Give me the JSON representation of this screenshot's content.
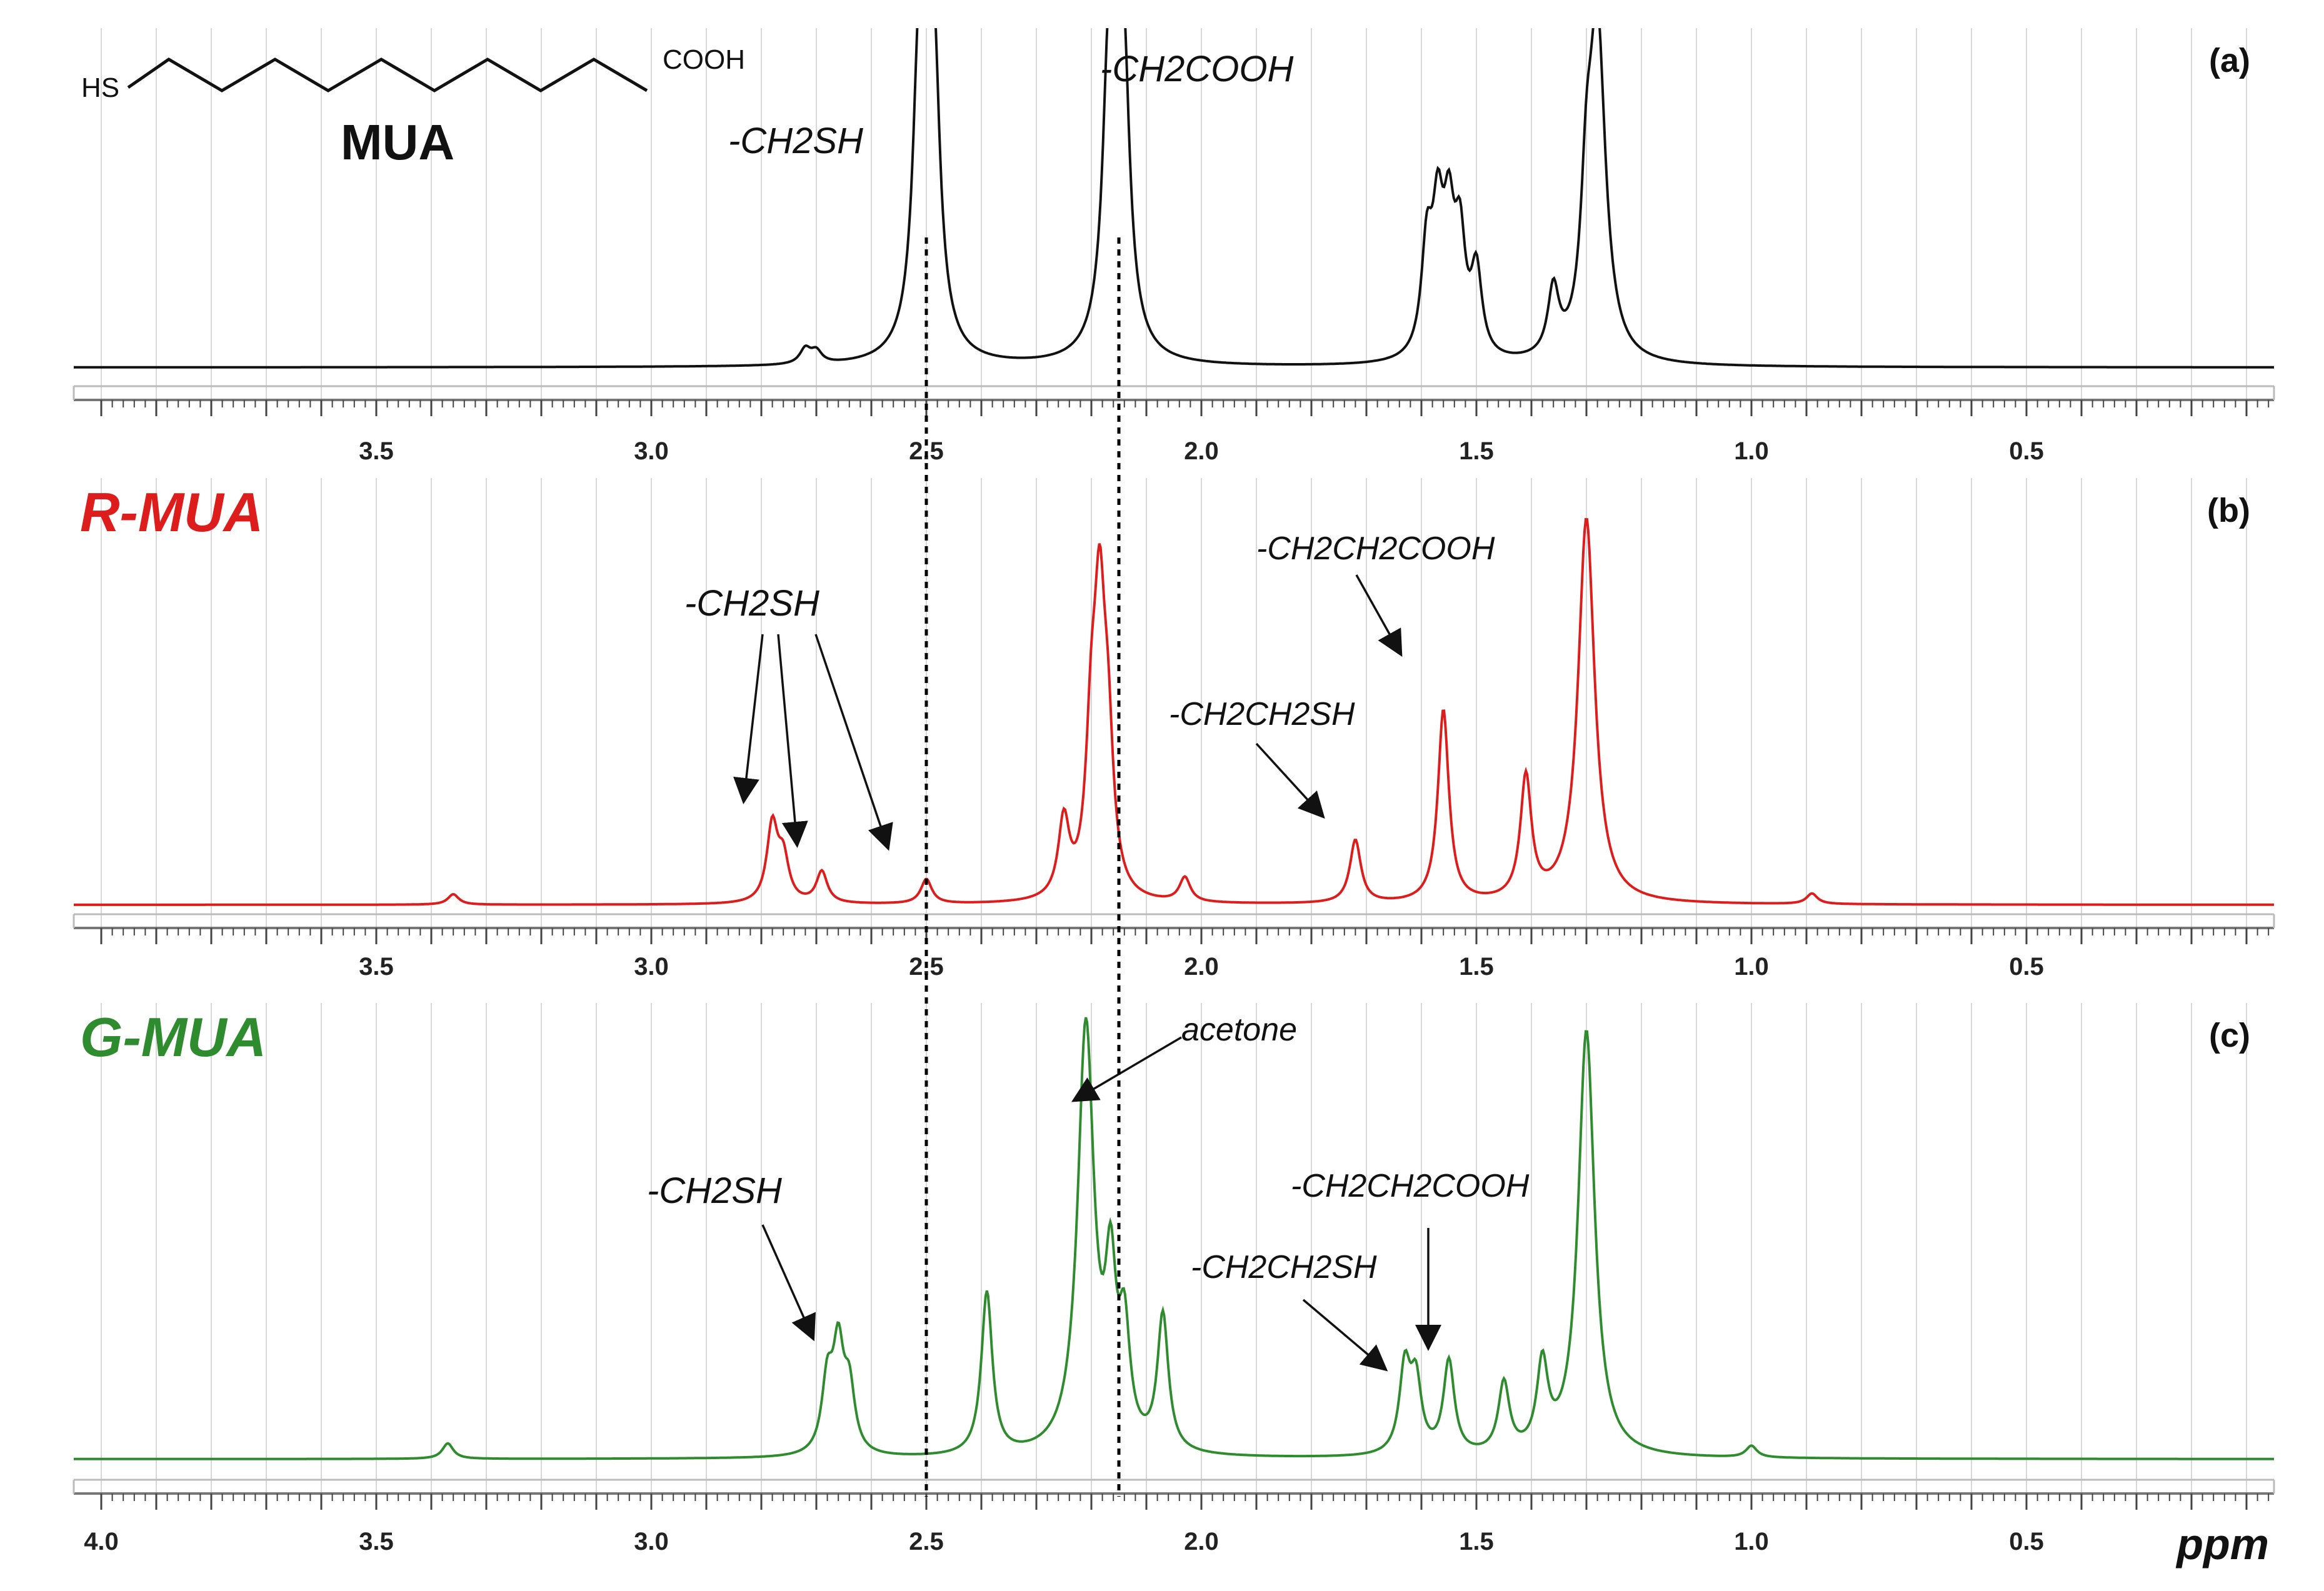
{
  "chart_data": [
    {
      "type": "line",
      "panel_tag": "(a)",
      "sample_name": "",
      "xlabel": "",
      "x_ticks": [
        "3.5",
        "3.0",
        "2.5",
        "2.0",
        "1.5",
        "1.0",
        "0.5"
      ],
      "xlim": [
        4.05,
        0.05
      ],
      "color": "#111111",
      "molecule": {
        "left": "HS",
        "right": "COOH",
        "name": "MUA"
      },
      "peaks": [
        {
          "ppm": 2.72,
          "intensity": 0.05
        },
        {
          "ppm": 2.7,
          "intensity": 0.04
        },
        {
          "ppm": 2.515,
          "intensity": 0.55
        },
        {
          "ppm": 2.5,
          "intensity": 0.95
        },
        {
          "ppm": 2.485,
          "intensity": 0.58
        },
        {
          "ppm": 2.17,
          "intensity": 0.55
        },
        {
          "ppm": 2.155,
          "intensity": 0.92
        },
        {
          "ppm": 2.14,
          "intensity": 0.58
        },
        {
          "ppm": 1.59,
          "intensity": 0.35
        },
        {
          "ppm": 1.57,
          "intensity": 0.42
        },
        {
          "ppm": 1.55,
          "intensity": 0.4
        },
        {
          "ppm": 1.53,
          "intensity": 0.36
        },
        {
          "ppm": 1.5,
          "intensity": 0.28
        },
        {
          "ppm": 1.36,
          "intensity": 0.22
        },
        {
          "ppm": 1.3,
          "intensity": 0.4
        },
        {
          "ppm": 1.28,
          "intensity": 1.1
        }
      ],
      "annotations": [
        {
          "text": "-CH2SH",
          "ppm": 2.62
        },
        {
          "text": "-CH2COOH",
          "ppm": 2.07
        }
      ]
    },
    {
      "type": "line",
      "panel_tag": "(b)",
      "sample_name": "R-MUA",
      "xlabel": "",
      "x_ticks": [
        "3.5",
        "3.0",
        "2.5",
        "2.0",
        "1.5",
        "1.0",
        "0.5"
      ],
      "xlim": [
        4.05,
        0.05
      ],
      "color": "#dd1c1c",
      "peaks": [
        {
          "ppm": 3.36,
          "intensity": 0.03
        },
        {
          "ppm": 2.78,
          "intensity": 0.22
        },
        {
          "ppm": 2.76,
          "intensity": 0.12
        },
        {
          "ppm": 2.69,
          "intensity": 0.09
        },
        {
          "ppm": 2.5,
          "intensity": 0.07
        },
        {
          "ppm": 2.25,
          "intensity": 0.22
        },
        {
          "ppm": 2.2,
          "intensity": 0.4
        },
        {
          "ppm": 2.185,
          "intensity": 0.72
        },
        {
          "ppm": 2.17,
          "intensity": 0.38
        },
        {
          "ppm": 2.03,
          "intensity": 0.07
        },
        {
          "ppm": 1.72,
          "intensity": 0.18
        },
        {
          "ppm": 1.56,
          "intensity": 0.55
        },
        {
          "ppm": 1.41,
          "intensity": 0.35
        },
        {
          "ppm": 1.3,
          "intensity": 1.1
        },
        {
          "ppm": 0.89,
          "intensity": 0.03
        }
      ],
      "annotations": [
        {
          "text": "-CH2SH",
          "ppm": 2.66
        },
        {
          "text": "-CH2CH2SH",
          "ppm": 1.88
        },
        {
          "text": "-CH2CH2COOH",
          "ppm": 1.67
        }
      ]
    },
    {
      "type": "line",
      "panel_tag": "(c)",
      "sample_name": "G-MUA",
      "xlabel": "ppm",
      "x_ticks": [
        "4.0",
        "3.5",
        "3.0",
        "2.5",
        "2.0",
        "1.5",
        "1.0",
        "0.5"
      ],
      "xlim": [
        4.05,
        0.05
      ],
      "color": "#2e8b2e",
      "peaks": [
        {
          "ppm": 3.37,
          "intensity": 0.04
        },
        {
          "ppm": 2.68,
          "intensity": 0.18
        },
        {
          "ppm": 2.66,
          "intensity": 0.26
        },
        {
          "ppm": 2.64,
          "intensity": 0.16
        },
        {
          "ppm": 2.39,
          "intensity": 0.42
        },
        {
          "ppm": 2.21,
          "intensity": 1.1
        },
        {
          "ppm": 2.165,
          "intensity": 0.4
        },
        {
          "ppm": 2.14,
          "intensity": 0.28
        },
        {
          "ppm": 2.07,
          "intensity": 0.35
        },
        {
          "ppm": 1.63,
          "intensity": 0.22
        },
        {
          "ppm": 1.61,
          "intensity": 0.18
        },
        {
          "ppm": 1.55,
          "intensity": 0.24
        },
        {
          "ppm": 1.45,
          "intensity": 0.18
        },
        {
          "ppm": 1.38,
          "intensity": 0.22
        },
        {
          "ppm": 1.3,
          "intensity": 1.1
        },
        {
          "ppm": 1.0,
          "intensity": 0.03
        }
      ],
      "annotations": [
        {
          "text": "acetone",
          "ppm": 2.21
        },
        {
          "text": "-CH2SH",
          "ppm": 2.79
        },
        {
          "text": "-CH2CH2SH",
          "ppm": 1.77
        },
        {
          "text": "-CH2CH2COOH",
          "ppm": 1.57
        }
      ]
    }
  ],
  "reference_lines_ppm": [
    2.5,
    2.15
  ]
}
